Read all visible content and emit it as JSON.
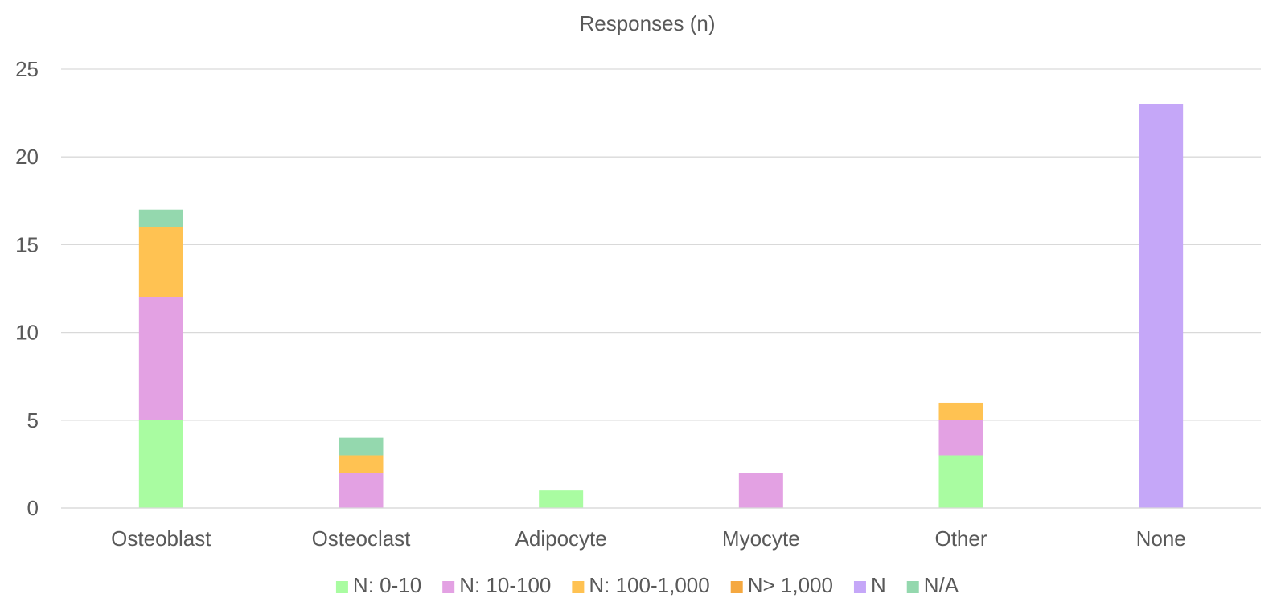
{
  "chart_data": {
    "type": "bar",
    "stacked": true,
    "title": "Responses (n)",
    "xlabel": "",
    "ylabel": "",
    "ylim": [
      0,
      25
    ],
    "yticks": [
      0,
      5,
      10,
      15,
      20,
      25
    ],
    "grid": true,
    "legend_position": "bottom",
    "categories": [
      "Osteoblast",
      "Osteoclast",
      "Adipocyte",
      "Myocyte",
      "Other",
      "None"
    ],
    "series": [
      {
        "name": "N: 0-10",
        "color": "#a9fca1",
        "values": [
          5,
          0,
          1,
          0,
          3,
          0
        ]
      },
      {
        "name": "N: 10-100",
        "color": "#e3a1e3",
        "values": [
          7,
          2,
          0,
          2,
          2,
          0
        ]
      },
      {
        "name": "N: 100-1,000",
        "color": "#ffc252",
        "values": [
          4,
          1,
          0,
          0,
          1,
          0
        ]
      },
      {
        "name": "N> 1,000",
        "color": "#f5a840",
        "values": [
          0,
          0,
          0,
          0,
          0,
          0
        ]
      },
      {
        "name": "N",
        "color": "#c5a7f8",
        "values": [
          0,
          0,
          0,
          0,
          0,
          23
        ]
      },
      {
        "name": "N/A",
        "color": "#94d8ae",
        "values": [
          1,
          1,
          0,
          0,
          0,
          0
        ]
      }
    ]
  }
}
